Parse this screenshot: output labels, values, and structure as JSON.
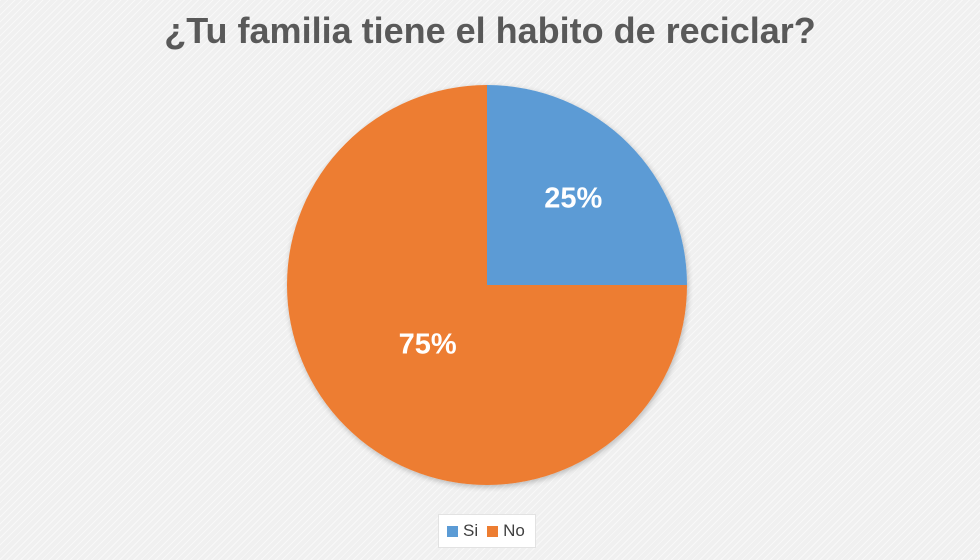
{
  "chart_data": {
    "type": "pie",
    "title": "¿Tu familia tiene el habito de reciclar?",
    "categories": [
      "Si",
      "No"
    ],
    "values": [
      25,
      75
    ],
    "data_labels": [
      "25%",
      "75%"
    ],
    "colors": [
      "#5b9bd5",
      "#ed7d31"
    ],
    "label_color": "#ffffff",
    "legend_position": "bottom",
    "start_angle_deg": 0,
    "direction": "clockwise"
  }
}
